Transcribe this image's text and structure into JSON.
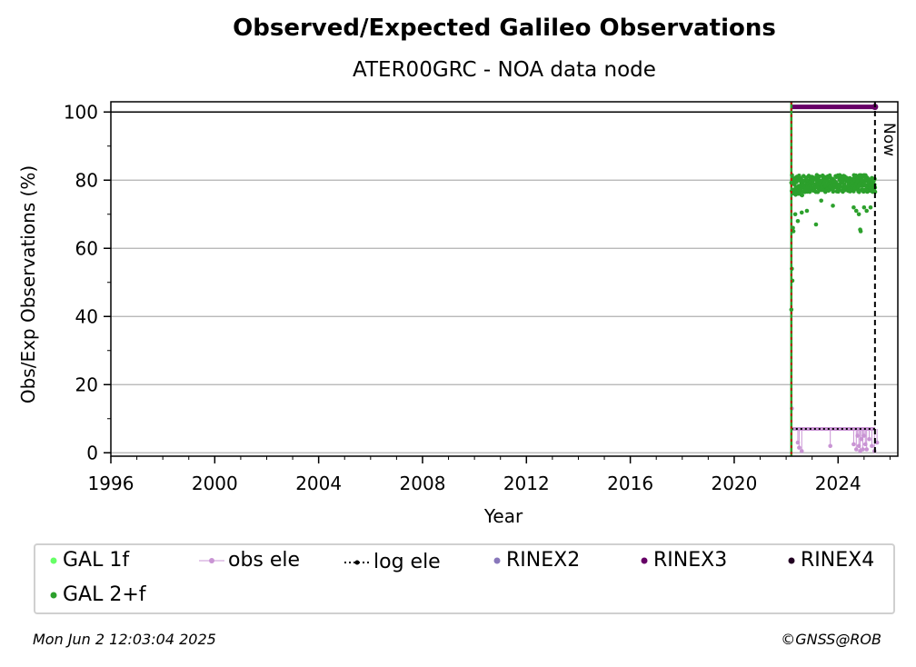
{
  "chart_data": {
    "type": "scatter",
    "title": "Observed/Expected Galileo Observations",
    "subtitle": "ATER00GRC - NOA data node",
    "xlabel": "Year",
    "ylabel": "Obs/Exp Observations (%)",
    "xlim": [
      1996,
      2026.3
    ],
    "ylim": [
      -1,
      103
    ],
    "x_ticks": [
      1996,
      2000,
      2004,
      2008,
      2012,
      2016,
      2020,
      2024
    ],
    "x_tick_labels": [
      "1996",
      "2000",
      "2004",
      "2008",
      "2012",
      "2016",
      "2020",
      "2024"
    ],
    "y_ticks": [
      0,
      20,
      40,
      60,
      80,
      100
    ],
    "y_tick_labels": [
      "0",
      "20",
      "40",
      "60",
      "80",
      "100"
    ],
    "grid": "horizontal",
    "now_label": "Now",
    "now_x": 2025.42,
    "start_x": 2022.2,
    "reference_line_y": 100,
    "series": [
      {
        "name": "GAL 1f",
        "color": "#66ff66",
        "points": []
      },
      {
        "name": "GAL 2+f",
        "color": "#2ca02c",
        "x_start": 2022.2,
        "x_end": 2025.42,
        "typical_range": [
          74,
          81
        ],
        "outliers": [
          [
            2022.2,
            42
          ],
          [
            2022.22,
            54
          ],
          [
            2022.24,
            50.5
          ],
          [
            2022.26,
            66
          ],
          [
            2022.28,
            65
          ],
          [
            2022.35,
            70
          ],
          [
            2022.45,
            68
          ],
          [
            2022.6,
            70.5
          ],
          [
            2022.8,
            71
          ],
          [
            2023.15,
            67
          ],
          [
            2023.35,
            74
          ],
          [
            2023.8,
            72.5
          ],
          [
            2024.6,
            72
          ],
          [
            2024.7,
            71
          ],
          [
            2024.8,
            70
          ],
          [
            2024.85,
            65.5
          ],
          [
            2024.87,
            65
          ],
          [
            2025.0,
            72
          ],
          [
            2025.1,
            71
          ],
          [
            2025.25,
            72
          ]
        ]
      },
      {
        "name": "obs ele",
        "color": "#c994d4",
        "x_start": 2022.2,
        "x_end": 2025.42,
        "baseline": 7,
        "drops": [
          [
            2022.22,
            13
          ],
          [
            2022.45,
            3
          ],
          [
            2022.5,
            1.5
          ],
          [
            2022.6,
            0.5
          ],
          [
            2023.7,
            2
          ],
          [
            2024.6,
            2.5
          ],
          [
            2024.7,
            1
          ],
          [
            2024.75,
            5
          ],
          [
            2024.8,
            2
          ],
          [
            2024.85,
            0.5
          ],
          [
            2024.9,
            4
          ],
          [
            2024.95,
            1
          ],
          [
            2025.0,
            5
          ],
          [
            2025.05,
            2.5
          ],
          [
            2025.1,
            1
          ],
          [
            2025.2,
            4
          ],
          [
            2025.3,
            2
          ],
          [
            2025.4,
            0.5
          ],
          [
            2025.5,
            3
          ]
        ]
      },
      {
        "name": "log ele",
        "color": "#000000",
        "x_start": 2022.2,
        "x_end": 2025.42,
        "value": 7
      },
      {
        "name": "RINEX2",
        "color": "#8877bb",
        "points": []
      },
      {
        "name": "RINEX3",
        "color": "#660066",
        "x_start": 2022.2,
        "x_end": 2025.42,
        "value": 101.5
      },
      {
        "name": "RINEX4",
        "color": "#220022",
        "points": []
      }
    ]
  },
  "footer": {
    "timestamp": "Mon Jun  2 12:03:04 2025",
    "credit": "©GNSS@ROB"
  }
}
